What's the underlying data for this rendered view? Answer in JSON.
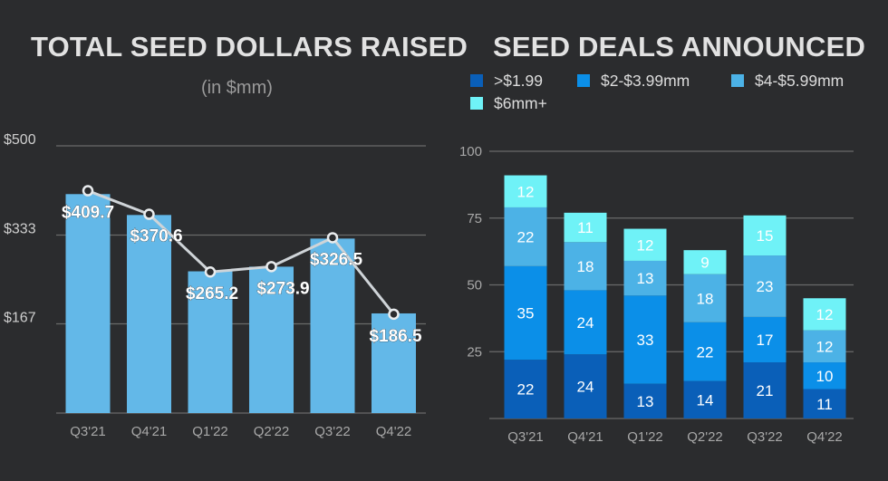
{
  "titles": {
    "left": "TOTAL SEED DOLLARS RAISED",
    "left_subtitle": "(in $mm)",
    "right": "SEED DEALS ANNOUNCED"
  },
  "colors": {
    "background": "#2b2c2e",
    "gridline": "#6a6a6a",
    "bar_left": "#63b8e8",
    "line_left": "#cfd4d8",
    "seg_1": "#0a5fb8",
    "seg_2": "#0b8fe8",
    "seg_3": "#4cb2e6",
    "seg_4": "#6ff2f7"
  },
  "chart_data": [
    {
      "type": "bar",
      "title": "TOTAL SEED DOLLARS RAISED",
      "subtitle": "(in $mm)",
      "categories": [
        "Q3'21",
        "Q4'21",
        "Q1'22",
        "Q2'22",
        "Q3'22",
        "Q4'22"
      ],
      "series": [
        {
          "values": [
            409.7,
            370.6,
            265.2,
            273.9,
            326.5,
            186.5
          ]
        }
      ],
      "data_labels": [
        "$409.7",
        "$370.6",
        "$265.2",
        "$273.9",
        "$326.5",
        "$186.5"
      ],
      "line_overlay": [
        416,
        372,
        264,
        274,
        328,
        185
      ],
      "yticks": [
        {
          "value": 167,
          "label": "$167"
        },
        {
          "value": 333,
          "label": "$333"
        },
        {
          "value": 500,
          "label": "$500"
        }
      ],
      "ylim": [
        0,
        500
      ],
      "grid": true
    },
    {
      "type": "bar",
      "stacked": true,
      "title": "SEED DEALS ANNOUNCED",
      "categories": [
        "Q3'21",
        "Q4'21",
        "Q1'22",
        "Q2'22",
        "Q3'22",
        "Q4'22"
      ],
      "series": [
        {
          "name": ">$1.99",
          "values": [
            22,
            24,
            13,
            14,
            21,
            11
          ]
        },
        {
          "name": "$2-$3.99mm",
          "values": [
            35,
            24,
            33,
            22,
            17,
            10
          ]
        },
        {
          "name": "$4-$5.99mm",
          "values": [
            22,
            18,
            13,
            18,
            23,
            12
          ]
        },
        {
          "name": "$6mm+",
          "values": [
            12,
            11,
            12,
            9,
            15,
            12
          ]
        }
      ],
      "yticks": [
        {
          "value": 25,
          "label": "25"
        },
        {
          "value": 50,
          "label": "50"
        },
        {
          "value": 75,
          "label": "75"
        },
        {
          "value": 100,
          "label": "100"
        }
      ],
      "ylim": [
        0,
        100
      ],
      "legend_position": "top",
      "grid": true
    }
  ]
}
